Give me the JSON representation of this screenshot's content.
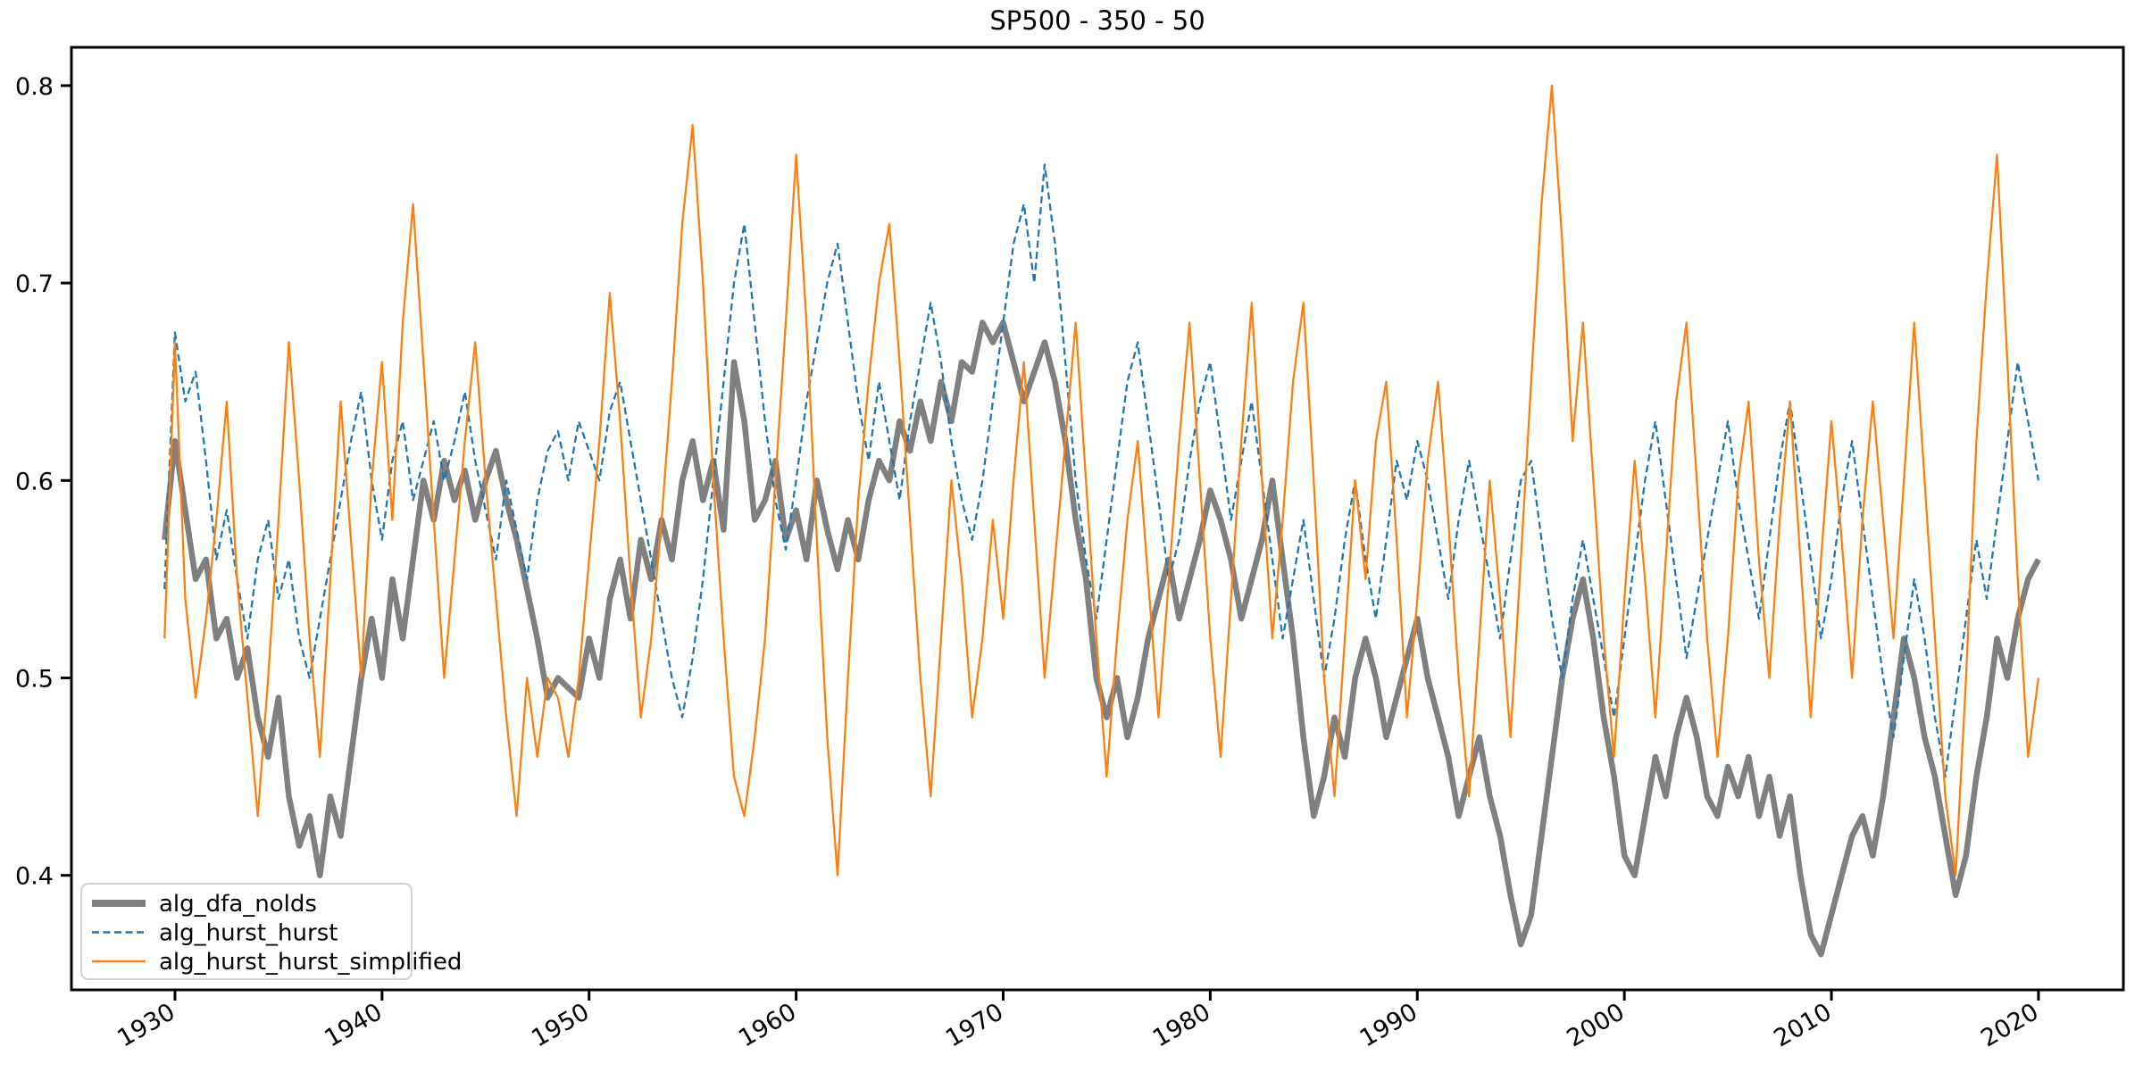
{
  "figure": {
    "title": "SP500 - 350 - 50"
  },
  "chart_data": {
    "type": "line",
    "title": "SP500 - 350 - 50",
    "xlabel": "",
    "ylabel": "",
    "xlim": [
      1925.0,
      2024.1
    ],
    "ylim": [
      0.342,
      0.8194
    ],
    "grid": false,
    "legend_position": "lower left",
    "x_ticks": [
      1930,
      1940,
      1950,
      1960,
      1970,
      1980,
      1990,
      2000,
      2010,
      2020
    ],
    "y_ticks": [
      "0.4",
      "0.5",
      "0.6",
      "0.7",
      "0.8"
    ],
    "axis_color": "#000000",
    "series": [
      {
        "name": "alg_dfa_nolds",
        "color": "#808080",
        "line_style": "solid",
        "line_width": 6.5,
        "x_start": 1929.5,
        "x_step": 0.5,
        "values": [
          0.57,
          0.62,
          0.585,
          0.55,
          0.56,
          0.52,
          0.53,
          0.5,
          0.515,
          0.48,
          0.46,
          0.49,
          0.44,
          0.415,
          0.43,
          0.4,
          0.44,
          0.42,
          0.46,
          0.5,
          0.53,
          0.5,
          0.55,
          0.52,
          0.56,
          0.6,
          0.58,
          0.61,
          0.59,
          0.605,
          0.58,
          0.6,
          0.615,
          0.59,
          0.57,
          0.545,
          0.52,
          0.49,
          0.5,
          0.495,
          0.49,
          0.52,
          0.5,
          0.54,
          0.56,
          0.53,
          0.57,
          0.55,
          0.58,
          0.56,
          0.6,
          0.62,
          0.59,
          0.61,
          0.575,
          0.66,
          0.63,
          0.58,
          0.59,
          0.61,
          0.57,
          0.585,
          0.56,
          0.6,
          0.575,
          0.555,
          0.58,
          0.56,
          0.59,
          0.61,
          0.6,
          0.63,
          0.615,
          0.64,
          0.62,
          0.65,
          0.63,
          0.66,
          0.655,
          0.68,
          0.67,
          0.68,
          0.66,
          0.64,
          0.655,
          0.67,
          0.65,
          0.62,
          0.58,
          0.55,
          0.5,
          0.48,
          0.5,
          0.47,
          0.49,
          0.52,
          0.54,
          0.56,
          0.53,
          0.55,
          0.57,
          0.595,
          0.58,
          0.56,
          0.53,
          0.55,
          0.57,
          0.6,
          0.56,
          0.52,
          0.47,
          0.43,
          0.45,
          0.48,
          0.46,
          0.5,
          0.52,
          0.5,
          0.47,
          0.49,
          0.51,
          0.53,
          0.5,
          0.48,
          0.46,
          0.43,
          0.45,
          0.47,
          0.44,
          0.42,
          0.39,
          0.365,
          0.38,
          0.42,
          0.46,
          0.5,
          0.53,
          0.55,
          0.52,
          0.48,
          0.45,
          0.41,
          0.4,
          0.43,
          0.46,
          0.44,
          0.47,
          0.49,
          0.47,
          0.44,
          0.43,
          0.455,
          0.44,
          0.46,
          0.43,
          0.45,
          0.42,
          0.44,
          0.4,
          0.37,
          0.36,
          0.38,
          0.4,
          0.42,
          0.43,
          0.41,
          0.44,
          0.48,
          0.52,
          0.5,
          0.47,
          0.45,
          0.42,
          0.39,
          0.41,
          0.45,
          0.48,
          0.52,
          0.5,
          0.53,
          0.55,
          0.56
        ]
      },
      {
        "name": "alg_hurst_hurst",
        "color": "#1f77b4",
        "line_style": "dashed",
        "line_width": 2.3,
        "x_start": 1929.5,
        "x_step": 0.5,
        "values": [
          0.545,
          0.675,
          0.64,
          0.655,
          0.61,
          0.56,
          0.585,
          0.55,
          0.52,
          0.56,
          0.58,
          0.54,
          0.56,
          0.52,
          0.5,
          0.53,
          0.56,
          0.59,
          0.62,
          0.645,
          0.6,
          0.57,
          0.61,
          0.63,
          0.59,
          0.61,
          0.63,
          0.6,
          0.62,
          0.645,
          0.61,
          0.585,
          0.56,
          0.6,
          0.575,
          0.55,
          0.59,
          0.615,
          0.625,
          0.6,
          0.63,
          0.615,
          0.6,
          0.635,
          0.65,
          0.62,
          0.59,
          0.56,
          0.53,
          0.5,
          0.48,
          0.51,
          0.55,
          0.6,
          0.65,
          0.7,
          0.73,
          0.68,
          0.63,
          0.59,
          0.565,
          0.6,
          0.64,
          0.67,
          0.7,
          0.72,
          0.68,
          0.64,
          0.61,
          0.65,
          0.62,
          0.59,
          0.63,
          0.66,
          0.69,
          0.66,
          0.62,
          0.59,
          0.57,
          0.6,
          0.64,
          0.68,
          0.72,
          0.74,
          0.7,
          0.76,
          0.72,
          0.66,
          0.6,
          0.56,
          0.53,
          0.57,
          0.61,
          0.65,
          0.67,
          0.63,
          0.59,
          0.55,
          0.57,
          0.61,
          0.64,
          0.66,
          0.62,
          0.58,
          0.61,
          0.64,
          0.6,
          0.56,
          0.52,
          0.55,
          0.58,
          0.54,
          0.5,
          0.53,
          0.57,
          0.6,
          0.56,
          0.53,
          0.57,
          0.61,
          0.59,
          0.62,
          0.6,
          0.57,
          0.54,
          0.58,
          0.61,
          0.58,
          0.55,
          0.52,
          0.56,
          0.6,
          0.61,
          0.57,
          0.53,
          0.5,
          0.54,
          0.57,
          0.54,
          0.51,
          0.48,
          0.52,
          0.56,
          0.6,
          0.63,
          0.59,
          0.55,
          0.51,
          0.54,
          0.57,
          0.6,
          0.63,
          0.59,
          0.56,
          0.53,
          0.57,
          0.61,
          0.64,
          0.6,
          0.56,
          0.52,
          0.55,
          0.59,
          0.62,
          0.58,
          0.54,
          0.5,
          0.47,
          0.51,
          0.55,
          0.52,
          0.48,
          0.45,
          0.49,
          0.53,
          0.57,
          0.54,
          0.58,
          0.62,
          0.66,
          0.63,
          0.6
        ]
      },
      {
        "name": "alg_hurst_hurst_simplified",
        "color": "#ff7f0e",
        "line_style": "solid",
        "line_width": 2.3,
        "x_start": 1929.5,
        "x_step": 0.5,
        "values": [
          0.52,
          0.67,
          0.54,
          0.49,
          0.53,
          0.58,
          0.64,
          0.55,
          0.49,
          0.43,
          0.5,
          0.58,
          0.67,
          0.6,
          0.52,
          0.46,
          0.55,
          0.64,
          0.57,
          0.5,
          0.6,
          0.66,
          0.58,
          0.68,
          0.74,
          0.66,
          0.58,
          0.5,
          0.56,
          0.62,
          0.67,
          0.6,
          0.54,
          0.48,
          0.43,
          0.5,
          0.46,
          0.5,
          0.49,
          0.46,
          0.5,
          0.56,
          0.62,
          0.695,
          0.63,
          0.55,
          0.48,
          0.52,
          0.58,
          0.65,
          0.73,
          0.78,
          0.7,
          0.6,
          0.52,
          0.45,
          0.43,
          0.47,
          0.52,
          0.6,
          0.68,
          0.765,
          0.68,
          0.57,
          0.47,
          0.4,
          0.5,
          0.59,
          0.65,
          0.7,
          0.73,
          0.66,
          0.58,
          0.5,
          0.44,
          0.52,
          0.6,
          0.55,
          0.48,
          0.52,
          0.58,
          0.53,
          0.6,
          0.66,
          0.58,
          0.5,
          0.56,
          0.62,
          0.68,
          0.6,
          0.52,
          0.45,
          0.52,
          0.58,
          0.62,
          0.55,
          0.48,
          0.55,
          0.62,
          0.68,
          0.6,
          0.52,
          0.46,
          0.54,
          0.62,
          0.69,
          0.6,
          0.52,
          0.58,
          0.65,
          0.69,
          0.6,
          0.5,
          0.44,
          0.52,
          0.6,
          0.55,
          0.62,
          0.65,
          0.57,
          0.48,
          0.54,
          0.61,
          0.65,
          0.58,
          0.5,
          0.44,
          0.52,
          0.6,
          0.54,
          0.47,
          0.56,
          0.65,
          0.74,
          0.8,
          0.72,
          0.62,
          0.68,
          0.6,
          0.52,
          0.46,
          0.54,
          0.61,
          0.55,
          0.48,
          0.56,
          0.64,
          0.68,
          0.6,
          0.52,
          0.46,
          0.52,
          0.6,
          0.64,
          0.56,
          0.5,
          0.58,
          0.64,
          0.56,
          0.48,
          0.56,
          0.63,
          0.57,
          0.5,
          0.58,
          0.64,
          0.58,
          0.52,
          0.6,
          0.68,
          0.6,
          0.52,
          0.44,
          0.4,
          0.5,
          0.62,
          0.7,
          0.765,
          0.66,
          0.55,
          0.46,
          0.5
        ]
      }
    ]
  }
}
